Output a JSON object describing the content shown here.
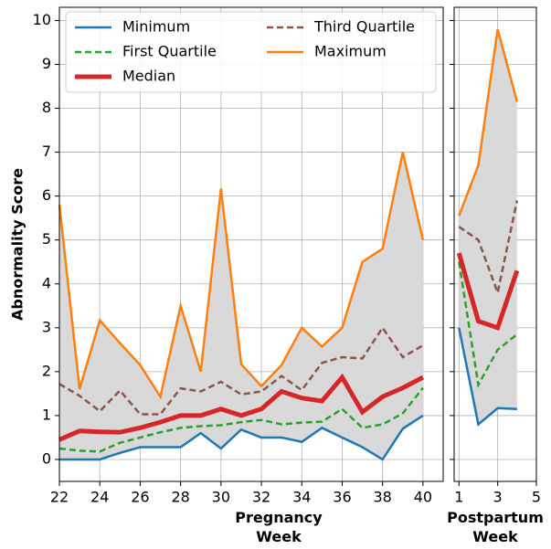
{
  "chart_data": [
    {
      "type": "line",
      "y_label": "Abnormality Score",
      "x_label": "Pregnancy Week",
      "x": [
        22,
        23,
        24,
        25,
        26,
        27,
        28,
        29,
        30,
        31,
        32,
        33,
        34,
        35,
        36,
        37,
        38,
        39,
        40
      ],
      "xlim": [
        22,
        41
      ],
      "xticks": [
        22,
        24,
        26,
        28,
        30,
        32,
        34,
        36,
        38,
        40
      ],
      "ylim": [
        -0.5,
        10.3
      ],
      "yticks": [
        0,
        1,
        2,
        3,
        4,
        5,
        6,
        7,
        8,
        9,
        10
      ],
      "grid": true,
      "legend": "upper-left",
      "band_color": "#d9d9d9",
      "series": [
        {
          "name": "Minimum",
          "color": "#1f77b4",
          "dash": "none",
          "width": 2.5,
          "values": [
            0,
            0,
            0,
            0.15,
            0.28,
            0.28,
            0.28,
            0.6,
            0.25,
            0.68,
            0.5,
            0.5,
            0.4,
            0.72,
            0.5,
            0.28,
            0,
            0.7,
            1.0
          ]
        },
        {
          "name": "First Quartile",
          "color": "#2ca02c",
          "dash": "7 4",
          "width": 2.5,
          "values": [
            0.25,
            0.2,
            0.18,
            0.38,
            0.5,
            0.62,
            0.72,
            0.76,
            0.78,
            0.85,
            0.9,
            0.8,
            0.84,
            0.86,
            1.15,
            0.72,
            0.8,
            1.05,
            1.63
          ]
        },
        {
          "name": "Median",
          "color": "#d62728",
          "dash": "none",
          "width": 5,
          "values": [
            0.45,
            0.65,
            0.63,
            0.62,
            0.72,
            0.85,
            1.0,
            1.0,
            1.15,
            1.0,
            1.15,
            1.55,
            1.4,
            1.33,
            1.87,
            1.08,
            1.43,
            1.63,
            1.87
          ]
        },
        {
          "name": "Third Quartile",
          "color": "#8c564b",
          "dash": "7 4",
          "width": 2.5,
          "values": [
            1.72,
            1.45,
            1.1,
            1.57,
            1.03,
            1.03,
            1.62,
            1.55,
            1.77,
            1.48,
            1.55,
            1.9,
            1.58,
            2.2,
            2.33,
            2.3,
            3.0,
            2.33,
            2.6
          ]
        },
        {
          "name": "Maximum",
          "color": "#ff7f0e",
          "dash": "none",
          "width": 2.5,
          "values": [
            5.8,
            1.6,
            3.17,
            2.65,
            2.15,
            1.43,
            3.5,
            2.0,
            6.17,
            2.17,
            1.67,
            2.15,
            3.0,
            2.57,
            3.0,
            4.5,
            4.8,
            7.0,
            5.0
          ]
        }
      ]
    },
    {
      "type": "line",
      "x_label": "Postpartum Week",
      "x": [
        1,
        2,
        3,
        4
      ],
      "xlim": [
        0.75,
        5
      ],
      "xticks": [
        1,
        3,
        5
      ],
      "ylim": [
        -0.5,
        10.3
      ],
      "yticks": [
        0,
        1,
        2,
        3,
        4,
        5,
        6,
        7,
        8,
        9,
        10
      ],
      "grid": true,
      "series": [
        {
          "values": [
            3.0,
            0.8,
            1.17,
            1.15
          ]
        },
        {
          "values": [
            4.5,
            1.7,
            2.5,
            2.85
          ]
        },
        {
          "values": [
            4.7,
            3.15,
            3.0,
            4.3
          ]
        },
        {
          "values": [
            5.3,
            5.0,
            3.8,
            5.9
          ]
        },
        {
          "values": [
            5.55,
            6.7,
            9.8,
            8.15
          ]
        }
      ]
    }
  ]
}
